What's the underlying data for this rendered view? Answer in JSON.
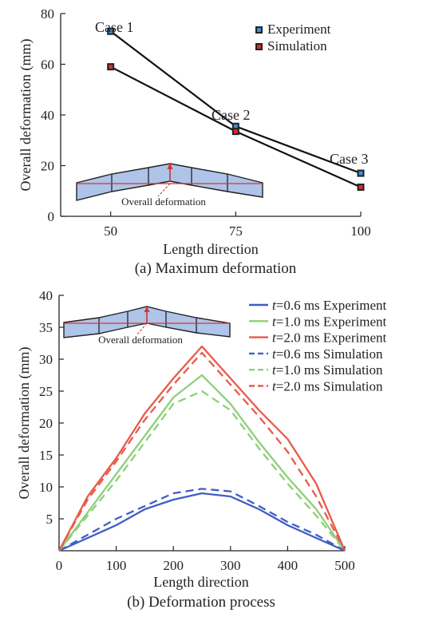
{
  "colors": {
    "experiment_marker": "#3b8fd9",
    "simulation_marker": "#d92b2b",
    "line_06": "#3f5ec4",
    "line_10": "#8fcf7a",
    "line_20": "#ea5a4a",
    "inset_fill": "#aec4e8",
    "inset_line": "#e0302b"
  },
  "chart_data": [
    {
      "type": "line",
      "caption": "(a) Maximum deformation",
      "xlabel": "Length direction",
      "ylabel": "Overall deformation (mm)",
      "xlim": [
        40,
        100
      ],
      "ylim": [
        0,
        80
      ],
      "xticks": [
        "50",
        "75",
        "100"
      ],
      "yticks": [
        "0",
        "20",
        "40",
        "60",
        "80"
      ],
      "x": [
        50,
        75,
        100
      ],
      "series": [
        {
          "name": "Experiment",
          "values": [
            73,
            35.5,
            17
          ]
        },
        {
          "name": "Simulation",
          "values": [
            59,
            33.5,
            11.5
          ]
        }
      ],
      "annotations": [
        "Case 1",
        "Case 2",
        "Case 3"
      ],
      "inset_label": "Overall deformation",
      "legend": "top-right"
    },
    {
      "type": "line",
      "caption": "(b) Deformation process",
      "xlabel": "Length direction",
      "ylabel": "Overall deformation (mm)",
      "xlim": [
        0,
        500
      ],
      "ylim": [
        0,
        40
      ],
      "xticks": [
        "0",
        "100",
        "200",
        "300",
        "400",
        "500"
      ],
      "yticks": [
        "5",
        "10",
        "15",
        "20",
        "25",
        "30",
        "35",
        "40"
      ],
      "inset_label": "Overall deformation",
      "legend": "top-right",
      "series": [
        {
          "name": "=0.6 ms Experiment",
          "var": "t",
          "key": "06",
          "dash": false,
          "x": [
            0,
            100,
            150,
            200,
            250,
            300,
            350,
            400,
            450,
            500
          ],
          "values": [
            0,
            4,
            6.5,
            8,
            9,
            8.5,
            6.5,
            4,
            2,
            0
          ]
        },
        {
          "name": "=1.0 ms Experiment",
          "var": "t",
          "key": "10",
          "dash": false,
          "x": [
            0,
            100,
            150,
            200,
            250,
            300,
            350,
            400,
            450,
            500
          ],
          "values": [
            0,
            12,
            18,
            24,
            27.5,
            23,
            17,
            11.5,
            6.5,
            0
          ]
        },
        {
          "name": "=2.0 ms Experiment",
          "var": "t",
          "key": "20",
          "dash": false,
          "x": [
            0,
            50,
            100,
            150,
            200,
            250,
            300,
            350,
            400,
            450,
            500
          ],
          "values": [
            0,
            8.5,
            14.5,
            21.5,
            27,
            32,
            27,
            22,
            17.5,
            10.5,
            0
          ]
        },
        {
          "name": "=0.6 ms Simulation",
          "var": "t",
          "key": "06",
          "dash": true,
          "x": [
            0,
            100,
            150,
            200,
            250,
            300,
            350,
            400,
            450,
            500
          ],
          "values": [
            0,
            5,
            7,
            9,
            9.7,
            9.3,
            7,
            4.5,
            2.5,
            0
          ]
        },
        {
          "name": "=1.0 ms Simulation",
          "var": "t",
          "key": "10",
          "dash": true,
          "x": [
            0,
            100,
            150,
            200,
            250,
            300,
            350,
            400,
            450,
            500
          ],
          "values": [
            0,
            11,
            17,
            23,
            25,
            22,
            16,
            10.5,
            5.5,
            0
          ]
        },
        {
          "name": "=2.0 ms Simulation",
          "var": "t",
          "key": "20",
          "dash": true,
          "x": [
            0,
            50,
            100,
            150,
            200,
            250,
            300,
            350,
            400,
            450,
            500
          ],
          "values": [
            0,
            8,
            14,
            20.5,
            26,
            31,
            26,
            21,
            15.5,
            8.5,
            0
          ]
        }
      ]
    }
  ]
}
